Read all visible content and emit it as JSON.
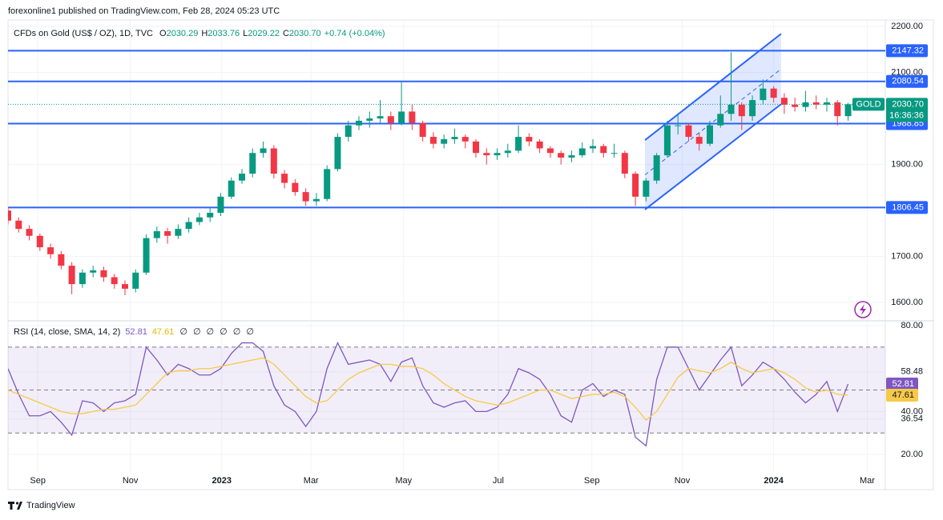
{
  "header": "forexonline1 published on TradingView.com, Feb 28, 2024 05:23 UTC",
  "footer": "TradingView",
  "chart_data": [
    {
      "type": "candlestick",
      "title": "CFDs on Gold (US$ / OZ), 1D, TVC",
      "ohlc": {
        "names": [
          "O",
          "H",
          "L",
          "C"
        ],
        "values": [
          2030.29,
          2033.76,
          2029.22,
          2030.7
        ],
        "value_labels": [
          "2030.29",
          "2033.76",
          "2029.22",
          "2030.70"
        ]
      },
      "change": "+0.74 (+0.04%)",
      "symbol": "GOLD",
      "last_price": {
        "value": 2030.7,
        "label": "2030.70"
      },
      "countdown": "16:36:36",
      "colors": {
        "up": "#089981",
        "down": "#f23645",
        "level": "#2962ff",
        "last": "#089981"
      },
      "x": [
        0,
        1,
        2,
        3,
        4,
        5,
        6,
        7,
        8,
        9,
        10,
        11,
        12,
        13,
        14,
        15,
        16,
        17,
        18,
        19,
        20,
        21,
        22,
        23,
        24,
        25,
        26,
        27,
        28,
        29,
        30,
        31,
        32,
        33,
        34,
        35,
        36,
        37,
        38,
        39,
        40,
        41,
        42,
        43,
        44,
        45,
        46,
        47,
        48,
        49,
        50,
        51,
        52,
        53,
        54,
        55,
        56,
        57,
        58,
        59,
        60,
        61,
        62,
        63,
        64,
        65,
        66,
        67,
        68,
        69,
        70,
        71,
        72,
        73,
        74,
        75,
        76,
        77,
        78,
        79
      ],
      "open": [
        1800,
        1778,
        1760,
        1745,
        1720,
        1705,
        1680,
        1640,
        1665,
        1670,
        1655,
        1640,
        1630,
        1665,
        1740,
        1755,
        1745,
        1760,
        1775,
        1785,
        1795,
        1830,
        1865,
        1880,
        1925,
        1935,
        1880,
        1860,
        1840,
        1820,
        1825,
        1890,
        1960,
        1985,
        1995,
        2000,
        2005,
        1990,
        2015,
        1990,
        1960,
        1945,
        1955,
        1960,
        1950,
        1925,
        1920,
        1925,
        1930,
        1960,
        1950,
        1935,
        1925,
        1915,
        1920,
        1935,
        1940,
        1925,
        1925,
        1880,
        1830,
        1865,
        1920,
        1985,
        1985,
        1960,
        1945,
        1985,
        2010,
        2030,
        2005,
        2040,
        2065,
        2045,
        2030,
        2025,
        2035,
        2030,
        2035,
        2005
      ],
      "high": [
        1808,
        1785,
        1768,
        1750,
        1728,
        1712,
        1688,
        1672,
        1680,
        1678,
        1662,
        1648,
        1672,
        1748,
        1765,
        1762,
        1770,
        1785,
        1795,
        1805,
        1838,
        1872,
        1890,
        1935,
        1950,
        1942,
        1888,
        1868,
        1848,
        1838,
        1898,
        1968,
        1995,
        2005,
        2015,
        2040,
        2015,
        2080,
        2030,
        1995,
        1970,
        1965,
        1978,
        1965,
        1955,
        1935,
        1935,
        1945,
        1985,
        1968,
        1955,
        1940,
        1930,
        1930,
        1948,
        1955,
        1945,
        1945,
        1930,
        1885,
        1870,
        1925,
        1995,
        2010,
        1990,
        1970,
        1995,
        2050,
        2144,
        2035,
        2050,
        2085,
        2070,
        2055,
        2045,
        2060,
        2050,
        2045,
        2040,
        2033.76
      ],
      "low": [
        1770,
        1752,
        1735,
        1712,
        1695,
        1672,
        1618,
        1632,
        1655,
        1645,
        1630,
        1616,
        1622,
        1660,
        1730,
        1728,
        1738,
        1752,
        1768,
        1775,
        1788,
        1825,
        1858,
        1872,
        1915,
        1870,
        1848,
        1832,
        1810,
        1810,
        1820,
        1885,
        1950,
        1975,
        1980,
        1990,
        1975,
        1985,
        1975,
        1950,
        1935,
        1935,
        1945,
        1935,
        1915,
        1900,
        1910,
        1915,
        1925,
        1940,
        1925,
        1915,
        1900,
        1905,
        1915,
        1925,
        1915,
        1915,
        1870,
        1810,
        1820,
        1858,
        1915,
        1965,
        1950,
        1930,
        1940,
        1980,
        1995,
        1975,
        1995,
        2030,
        2035,
        2010,
        2015,
        2015,
        2020,
        2015,
        1985,
        1995
      ],
      "close": [
        1778,
        1760,
        1745,
        1720,
        1705,
        1680,
        1640,
        1665,
        1670,
        1655,
        1640,
        1630,
        1665,
        1740,
        1755,
        1745,
        1760,
        1775,
        1785,
        1795,
        1830,
        1865,
        1880,
        1925,
        1935,
        1880,
        1860,
        1840,
        1820,
        1825,
        1890,
        1960,
        1985,
        1995,
        2000,
        2005,
        1990,
        2015,
        1990,
        1960,
        1945,
        1955,
        1960,
        1950,
        1925,
        1920,
        1925,
        1930,
        1960,
        1950,
        1935,
        1925,
        1915,
        1920,
        1935,
        1940,
        1925,
        1925,
        1880,
        1830,
        1865,
        1920,
        1985,
        1985,
        1960,
        1945,
        1985,
        2010,
        2030,
        2005,
        2040,
        2065,
        2045,
        2030,
        2025,
        2035,
        2030,
        2035,
        2005,
        2030.7
      ],
      "xlim": [
        0,
        82.5
      ],
      "xticks": [
        {
          "value": 2.8,
          "label": "Sep"
        },
        {
          "value": 11.5,
          "label": "Nov"
        },
        {
          "value": 20.1,
          "label": "2023"
        },
        {
          "value": 28.5,
          "label": "Mar"
        },
        {
          "value": 37.2,
          "label": "May"
        },
        {
          "value": 46.1,
          "label": "Jul"
        },
        {
          "value": 54.9,
          "label": "Sep"
        },
        {
          "value": 63.4,
          "label": "Nov"
        },
        {
          "value": 72.0,
          "label": "2024"
        },
        {
          "value": 80.8,
          "label": "Mar"
        }
      ],
      "ylim": [
        1562,
        2214
      ],
      "yticks": [
        {
          "value": 1600,
          "label": "1600.00"
        },
        {
          "value": 1700,
          "label": "1700.00"
        },
        {
          "value": 1900,
          "label": "1900.00"
        },
        {
          "value": 2100,
          "label": "2100.00"
        },
        {
          "value": 2200,
          "label": "2200.00"
        }
      ],
      "levels": [
        2147.32,
        2080.54,
        1988.85,
        1806.45
      ],
      "channel": {
        "x": [
          59.9,
          72.7
        ],
        "lower": [
          1802,
          2031
        ],
        "upper": [
          1953,
          2184
        ]
      },
      "grid": true
    },
    {
      "type": "line",
      "title": "RSI (14, close, SMA, 14, 2)",
      "legend_values": [
        52.81,
        47.61
      ],
      "extras": [
        "∅",
        "∅",
        "∅",
        "∅",
        "∅",
        "∅"
      ],
      "series": [
        {
          "color": "#7e57c2",
          "values": [
            60,
            48,
            38,
            38,
            40,
            35,
            29,
            45,
            44,
            40,
            44,
            45,
            48,
            70,
            64,
            57,
            62,
            60,
            57,
            57,
            60,
            67,
            72,
            72,
            68,
            52,
            43,
            40,
            33,
            40,
            60,
            72,
            62,
            63,
            64,
            62,
            54,
            63,
            65,
            52,
            44,
            42,
            44,
            45,
            40,
            40,
            42,
            48,
            60,
            58,
            55,
            48,
            38,
            35,
            50,
            53,
            47,
            50,
            48,
            28,
            24,
            55,
            70,
            70,
            60,
            50,
            57,
            64,
            70,
            52,
            57,
            63,
            60,
            55,
            49,
            44,
            48,
            54,
            40,
            52.81
          ]
        },
        {
          "color": "#f7c948",
          "values": [
            50,
            48,
            46,
            44,
            42,
            40,
            39,
            39,
            40,
            41,
            41,
            42,
            43,
            48,
            53,
            58,
            59,
            59,
            60,
            60,
            61,
            62,
            63,
            64,
            65,
            62,
            57,
            52,
            47,
            44,
            45,
            50,
            55,
            58,
            60,
            62,
            62,
            61,
            61,
            60,
            57,
            53,
            50,
            47,
            45,
            44,
            43,
            44,
            46,
            48,
            50,
            50,
            48,
            46,
            47,
            48,
            48,
            49,
            47,
            42,
            36,
            40,
            48,
            56,
            60,
            59,
            58,
            60,
            63,
            60,
            58,
            59,
            60,
            58,
            55,
            51,
            49,
            50,
            48,
            47.61
          ]
        }
      ],
      "bands": [
        70,
        50,
        30
      ],
      "band_color": "#7e57c2",
      "ylim": [
        11.8,
        81.9
      ],
      "yticks": [
        {
          "value": 80,
          "label": "80.00"
        },
        58.48,
        {
          "value": 40,
          "label": "40.00"
        },
        36.54,
        {
          "value": 20,
          "label": "20.00"
        }
      ],
      "grid": true
    }
  ]
}
